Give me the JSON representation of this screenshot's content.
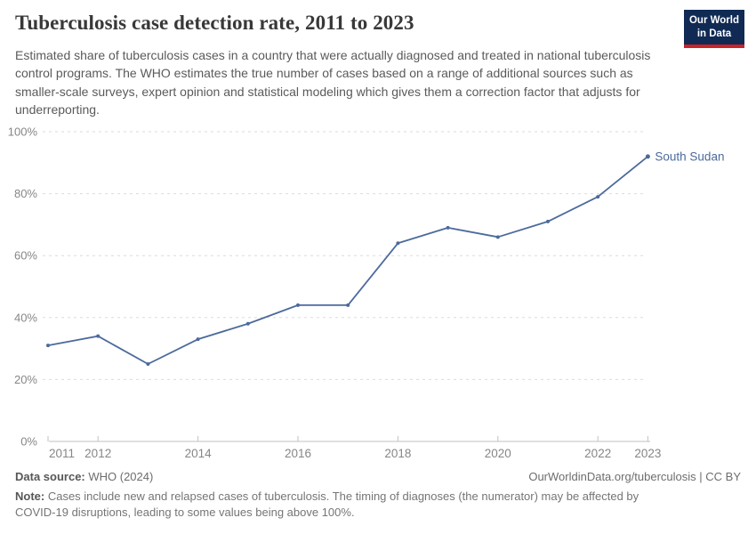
{
  "header": {
    "title": "Tuberculosis case detection rate, 2011 to 2023",
    "subtitle": "Estimated share of tuberculosis cases in a country that were actually diagnosed and treated in national tuberculosis control programs. The WHO estimates the true number of cases based on a range of additional sources such as smaller-scale surveys, expert opinion and statistical modeling which gives them a correction factor that adjusts for underreporting.",
    "logo": {
      "line1": "Our World",
      "line2": "in Data"
    }
  },
  "chart_data": {
    "type": "line",
    "title": "Tuberculosis case detection rate, 2011 to 2023",
    "x": [
      2011,
      2012,
      2013,
      2014,
      2015,
      2016,
      2017,
      2018,
      2019,
      2020,
      2021,
      2022,
      2023
    ],
    "series": [
      {
        "name": "South Sudan",
        "values": [
          31,
          34,
          25,
          33,
          38,
          44,
          44,
          64,
          69,
          66,
          71,
          79,
          92
        ]
      }
    ],
    "ylim": [
      0,
      100
    ],
    "yticks": [
      0,
      20,
      40,
      60,
      80,
      100
    ],
    "ytick_suffix": "%",
    "xticks": [
      2011,
      2012,
      2014,
      2016,
      2018,
      2020,
      2022,
      2023
    ],
    "grid": "horizontal-dashed",
    "legend": "line-end-label"
  },
  "colors": {
    "line": "#4C6A9C",
    "series_label": "#4C6A9C",
    "grid": "#DBDBDB",
    "axis": "#C2C2C2",
    "tick_text": "#868686",
    "logo_bg": "#102A54",
    "logo_accent": "#CB2228"
  },
  "footer": {
    "datasource_label": "Data source:",
    "datasource_value": " WHO (2024)",
    "link": "OurWorldinData.org/tuberculosis | CC BY",
    "note_label": "Note:",
    "note_value": " Cases include new and relapsed cases of tuberculosis. The timing of diagnoses (the numerator) may be affected by COVID-19 disruptions, leading to some values being above 100%."
  }
}
